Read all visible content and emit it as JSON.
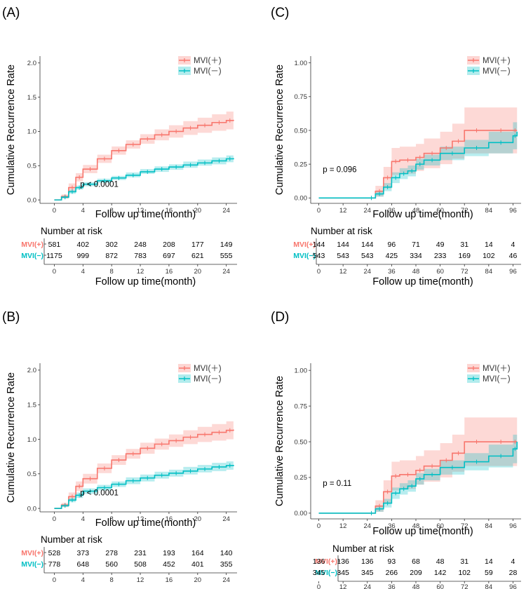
{
  "colors": {
    "mvi_pos": "#F8766D",
    "mvi_neg": "#00BFC4",
    "ci_pos": "#F8766D",
    "ci_neg": "#00BFC4"
  },
  "chart_data": [
    {
      "panel_label": "(A)",
      "type": "line",
      "ylabel": "Cumulative Recurrence Rate",
      "xlabel": "Follow up time(month)",
      "xlim": [
        -2,
        25.5
      ],
      "ylim": [
        -0.05,
        2.1
      ],
      "xticks": [
        0,
        4,
        8,
        12,
        16,
        20,
        24
      ],
      "xtick_labels": [
        "0",
        "4",
        "8",
        "12",
        "16",
        "20",
        "24"
      ],
      "yticks": [
        0,
        0.5,
        1.0,
        1.5,
        2.0
      ],
      "ytick_labels": [
        "0.0",
        "0.5",
        "1.0",
        "1.5",
        "2.0"
      ],
      "pvalue": "p < 0.0001",
      "pvalue_pos": [
        3.6,
        0.19
      ],
      "legend": [
        "MVI(＋)",
        "MVI(－)"
      ],
      "series": [
        {
          "name": "MVI(＋)",
          "x": [
            0,
            1,
            2,
            3,
            4,
            6,
            8,
            10,
            12,
            14,
            16,
            18,
            20,
            22,
            24,
            25
          ],
          "y": [
            0,
            0.05,
            0.18,
            0.33,
            0.45,
            0.6,
            0.72,
            0.81,
            0.89,
            0.95,
            1.0,
            1.05,
            1.09,
            1.13,
            1.16,
            1.17
          ],
          "ci_low": [
            0,
            0.02,
            0.12,
            0.27,
            0.39,
            0.54,
            0.66,
            0.75,
            0.82,
            0.87,
            0.91,
            0.95,
            0.98,
            1.01,
            1.03,
            1.04
          ],
          "ci_high": [
            0,
            0.08,
            0.24,
            0.39,
            0.51,
            0.66,
            0.78,
            0.87,
            0.96,
            1.03,
            1.09,
            1.15,
            1.2,
            1.25,
            1.29,
            1.3
          ]
        },
        {
          "name": "MVI(－)",
          "x": [
            0,
            1,
            2,
            3,
            4,
            6,
            8,
            10,
            12,
            14,
            16,
            18,
            20,
            22,
            24,
            25
          ],
          "y": [
            0,
            0.04,
            0.12,
            0.18,
            0.23,
            0.28,
            0.32,
            0.36,
            0.41,
            0.45,
            0.48,
            0.51,
            0.54,
            0.57,
            0.6,
            0.61
          ],
          "ci_low": [
            0,
            0.02,
            0.09,
            0.15,
            0.2,
            0.25,
            0.29,
            0.33,
            0.38,
            0.41,
            0.44,
            0.47,
            0.5,
            0.52,
            0.55,
            0.56
          ],
          "ci_high": [
            0,
            0.06,
            0.15,
            0.21,
            0.26,
            0.31,
            0.35,
            0.4,
            0.45,
            0.49,
            0.52,
            0.56,
            0.59,
            0.62,
            0.65,
            0.66
          ]
        }
      ],
      "risk_table": {
        "title": "Number at risk",
        "groups": [
          "MVI(+)",
          "MVI(−)"
        ],
        "rows": [
          [
            "581",
            "402",
            "302",
            "248",
            "208",
            "177",
            "149"
          ],
          [
            "1175",
            "999",
            "872",
            "783",
            "697",
            "621",
            "555"
          ]
        ]
      }
    },
    {
      "panel_label": "(C)",
      "type": "line",
      "ylabel": "Cumulative Recurrence Rate",
      "xlabel": "Follow up time(month)",
      "xlim": [
        -4,
        100
      ],
      "ylim": [
        -0.04,
        1.05
      ],
      "xticks": [
        0,
        12,
        24,
        36,
        48,
        60,
        72,
        84,
        96
      ],
      "xtick_labels": [
        "0",
        "12",
        "24",
        "36",
        "48",
        "60",
        "72",
        "84",
        "96"
      ],
      "yticks": [
        0,
        0.25,
        0.5,
        0.75,
        1.0
      ],
      "ytick_labels": [
        "0.00",
        "0.25",
        "0.50",
        "0.75",
        "1.00"
      ],
      "pvalue": "p = 0.096",
      "pvalue_pos": [
        2,
        0.19
      ],
      "legend": [
        "MVI(＋)",
        "MVI(－)"
      ],
      "series": [
        {
          "name": "MVI(＋)",
          "x": [
            0,
            24,
            28,
            32,
            36,
            40,
            48,
            52,
            60,
            66,
            72,
            84,
            96,
            98
          ],
          "y": [
            0,
            0,
            0.05,
            0.15,
            0.27,
            0.28,
            0.3,
            0.33,
            0.37,
            0.42,
            0.5,
            0.5,
            0.5,
            0.5
          ],
          "ci_low": [
            0,
            0,
            0.01,
            0.07,
            0.17,
            0.18,
            0.2,
            0.22,
            0.25,
            0.29,
            0.33,
            0.33,
            0.33,
            0.33
          ],
          "ci_high": [
            0,
            0,
            0.09,
            0.23,
            0.37,
            0.38,
            0.4,
            0.44,
            0.49,
            0.55,
            0.67,
            0.67,
            0.67,
            0.67
          ]
        },
        {
          "name": "MVI(－)",
          "x": [
            0,
            24,
            28,
            32,
            36,
            40,
            44,
            48,
            52,
            60,
            72,
            84,
            96,
            98
          ],
          "y": [
            0,
            0,
            0.03,
            0.08,
            0.15,
            0.18,
            0.2,
            0.25,
            0.28,
            0.33,
            0.37,
            0.41,
            0.46,
            0.49
          ],
          "ci_low": [
            0,
            0,
            0.01,
            0.05,
            0.11,
            0.14,
            0.16,
            0.21,
            0.24,
            0.28,
            0.31,
            0.33,
            0.36,
            0.38
          ],
          "ci_high": [
            0,
            0,
            0.05,
            0.11,
            0.19,
            0.22,
            0.24,
            0.29,
            0.32,
            0.38,
            0.43,
            0.49,
            0.56,
            0.6
          ]
        }
      ],
      "risk_table": {
        "title": "Number at risk",
        "groups": [
          "MVI(+)",
          "MVI(−)"
        ],
        "rows": [
          [
            "144",
            "144",
            "144",
            "96",
            "71",
            "49",
            "31",
            "14",
            "4"
          ],
          [
            "543",
            "543",
            "543",
            "425",
            "334",
            "233",
            "169",
            "102",
            "46"
          ]
        ]
      }
    },
    {
      "panel_label": "(B)",
      "type": "line",
      "ylabel": "Cumulative Recurrence Rate",
      "xlabel": "Follow up time(month)",
      "xlim": [
        -2,
        25.5
      ],
      "ylim": [
        -0.05,
        2.1
      ],
      "xticks": [
        0,
        4,
        8,
        12,
        16,
        20,
        24
      ],
      "xtick_labels": [
        "0",
        "4",
        "8",
        "12",
        "16",
        "20",
        "24"
      ],
      "yticks": [
        0,
        0.5,
        1.0,
        1.5,
        2.0
      ],
      "ytick_labels": [
        "0.0",
        "0.5",
        "1.0",
        "1.5",
        "2.0"
      ],
      "pvalue": "p < 0.0001",
      "pvalue_pos": [
        3.6,
        0.19
      ],
      "legend": [
        "MVI(＋)",
        "MVI(－)"
      ],
      "series": [
        {
          "name": "MVI(＋)",
          "x": [
            0,
            1,
            2,
            3,
            4,
            6,
            8,
            10,
            12,
            14,
            16,
            18,
            20,
            22,
            24,
            25
          ],
          "y": [
            0,
            0.05,
            0.17,
            0.32,
            0.43,
            0.58,
            0.7,
            0.79,
            0.87,
            0.93,
            0.98,
            1.03,
            1.07,
            1.1,
            1.13,
            1.14
          ],
          "ci_low": [
            0,
            0.02,
            0.11,
            0.25,
            0.36,
            0.51,
            0.63,
            0.72,
            0.79,
            0.85,
            0.89,
            0.93,
            0.96,
            0.98,
            1.0,
            1.01
          ],
          "ci_high": [
            0,
            0.08,
            0.23,
            0.39,
            0.5,
            0.65,
            0.77,
            0.86,
            0.95,
            1.01,
            1.07,
            1.13,
            1.18,
            1.22,
            1.26,
            1.27
          ]
        },
        {
          "name": "MVI(－)",
          "x": [
            0,
            1,
            2,
            3,
            4,
            6,
            8,
            10,
            12,
            14,
            16,
            18,
            20,
            22,
            24,
            25
          ],
          "y": [
            0,
            0.04,
            0.12,
            0.19,
            0.25,
            0.3,
            0.35,
            0.4,
            0.44,
            0.48,
            0.51,
            0.54,
            0.57,
            0.6,
            0.62,
            0.63
          ],
          "ci_low": [
            0,
            0.02,
            0.09,
            0.15,
            0.21,
            0.26,
            0.31,
            0.35,
            0.39,
            0.43,
            0.46,
            0.49,
            0.52,
            0.54,
            0.56,
            0.57
          ],
          "ci_high": [
            0,
            0.06,
            0.15,
            0.23,
            0.29,
            0.34,
            0.39,
            0.45,
            0.49,
            0.53,
            0.56,
            0.6,
            0.63,
            0.66,
            0.68,
            0.69
          ]
        }
      ],
      "risk_table": {
        "title": "Number at risk",
        "groups": [
          "MVI(+)",
          "MVI(−)"
        ],
        "rows": [
          [
            "528",
            "373",
            "278",
            "231",
            "193",
            "164",
            "140"
          ],
          [
            "778",
            "648",
            "560",
            "508",
            "452",
            "401",
            "355"
          ]
        ]
      }
    },
    {
      "panel_label": "(D)",
      "type": "line",
      "ylabel": "Cumulative Recurrence Rate",
      "xlabel": "Follow up time(month)",
      "xlim": [
        -4,
        100
      ],
      "ylim": [
        -0.04,
        1.05
      ],
      "xticks": [
        0,
        12,
        24,
        36,
        48,
        60,
        72,
        84,
        96
      ],
      "xtick_labels": [
        "0",
        "12",
        "24",
        "36",
        "48",
        "60",
        "72",
        "84",
        "96"
      ],
      "yticks": [
        0,
        0.25,
        0.5,
        0.75,
        1.0
      ],
      "ytick_labels": [
        "0.00",
        "0.25",
        "0.50",
        "0.75",
        "1.00"
      ],
      "pvalue": "p = 0.11",
      "pvalue_pos": [
        2,
        0.19
      ],
      "legend": [
        "MVI(＋)",
        "MVI(－)"
      ],
      "series": [
        {
          "name": "MVI(＋)",
          "x": [
            0,
            24,
            28,
            32,
            36,
            40,
            48,
            52,
            60,
            66,
            72,
            84,
            96,
            98
          ],
          "y": [
            0,
            0,
            0.05,
            0.15,
            0.26,
            0.27,
            0.3,
            0.33,
            0.37,
            0.42,
            0.5,
            0.5,
            0.5,
            0.5
          ],
          "ci_low": [
            0,
            0,
            0.01,
            0.07,
            0.16,
            0.17,
            0.2,
            0.22,
            0.25,
            0.29,
            0.33,
            0.33,
            0.33,
            0.33
          ],
          "ci_high": [
            0,
            0,
            0.09,
            0.23,
            0.36,
            0.37,
            0.4,
            0.44,
            0.49,
            0.55,
            0.67,
            0.67,
            0.67,
            0.67
          ]
        },
        {
          "name": "MVI(－)",
          "x": [
            0,
            24,
            28,
            32,
            36,
            40,
            44,
            48,
            52,
            60,
            72,
            84,
            96,
            98
          ],
          "y": [
            0,
            0,
            0.03,
            0.07,
            0.14,
            0.17,
            0.19,
            0.24,
            0.27,
            0.32,
            0.36,
            0.4,
            0.45,
            0.5
          ],
          "ci_low": [
            0,
            0,
            0.01,
            0.04,
            0.1,
            0.13,
            0.15,
            0.2,
            0.23,
            0.27,
            0.3,
            0.32,
            0.35,
            0.37
          ],
          "ci_high": [
            0,
            0,
            0.05,
            0.1,
            0.18,
            0.21,
            0.23,
            0.28,
            0.31,
            0.37,
            0.42,
            0.48,
            0.55,
            0.63
          ]
        }
      ],
      "risk_table": {
        "title": "Number at risk",
        "groups": [
          "MVI(+)",
          "MVI(−)"
        ],
        "rows": [
          [
            "136",
            "136",
            "136",
            "93",
            "68",
            "48",
            "31",
            "14",
            "4"
          ],
          [
            "345",
            "345",
            "345",
            "266",
            "209",
            "142",
            "102",
            "59",
            "28"
          ]
        ]
      }
    }
  ]
}
